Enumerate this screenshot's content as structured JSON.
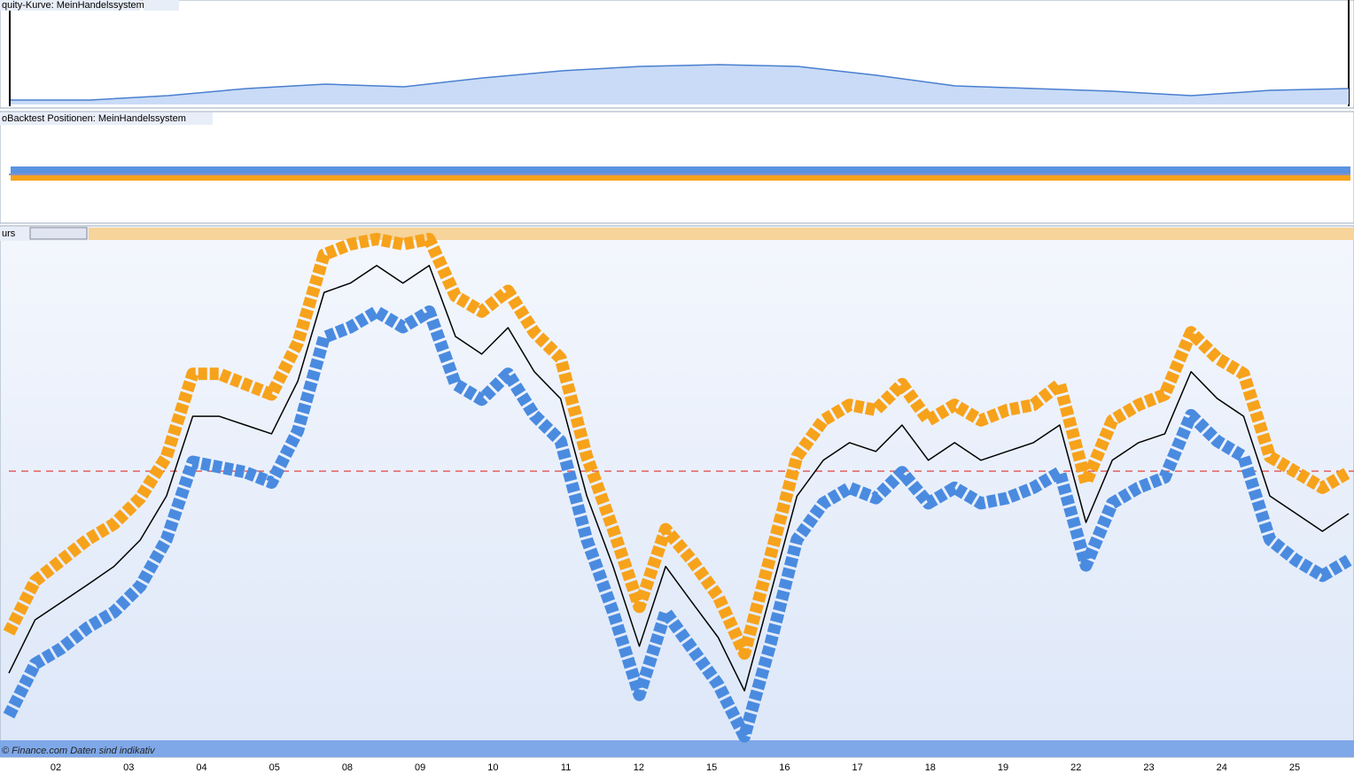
{
  "panels": {
    "equity_title": "quity-Kurve: MeinHandelssystem",
    "positions_title": "oBacktest Positionen: MeinHandelssystem",
    "price_title": "urs",
    "footer": "© Finance.com  Daten sind indikativ"
  },
  "chart_data": [
    {
      "type": "area",
      "ylim": [
        0,
        100
      ],
      "color": "#c9dbf6",
      "line_color": "#4a7fd0",
      "values": [
        5.1,
        5.1,
        10.2,
        18.4,
        23.5,
        20.4,
        30.6,
        38.8,
        43.9,
        45.9,
        43.9,
        33.7,
        21.4,
        18.4,
        15.3,
        10.2,
        16.3,
        18.4
      ]
    },
    {
      "type": "line",
      "ylim": [
        0,
        100
      ],
      "x_labels": [
        "02",
        "03",
        "04",
        "05",
        "08",
        "09",
        "10",
        "11",
        "12",
        "15",
        "16",
        "17",
        "18",
        "19",
        "22",
        "23",
        "24",
        "25"
      ],
      "reference_level": 55.2,
      "reference_color": "#e03030",
      "series": [
        {
          "color": "#f7a21b",
          "values": [
            24,
            34,
            38,
            42,
            45,
            50,
            58,
            74,
            74,
            72,
            70,
            80,
            97,
            99,
            100,
            99,
            100,
            89,
            86,
            90,
            82,
            77,
            58,
            44,
            29,
            44,
            38,
            31,
            20,
            39,
            58,
            65,
            68,
            67,
            72,
            65,
            68,
            65,
            67,
            68,
            72,
            53,
            65,
            68,
            70,
            82,
            77,
            74,
            58,
            55,
            52,
            55
          ]
        },
        {
          "color": "#4a8be0",
          "values": [
            8,
            18,
            21,
            25,
            28,
            33,
            42,
            57,
            56,
            55,
            53,
            63,
            81,
            83,
            86,
            83,
            86,
            72,
            69,
            74,
            66,
            61,
            42,
            28,
            12,
            28,
            21,
            14,
            4,
            22,
            42,
            49,
            52,
            50,
            55,
            49,
            52,
            49,
            50,
            52,
            55,
            37,
            49,
            52,
            54,
            66,
            61,
            58,
            42,
            38,
            35,
            38
          ]
        },
        {
          "color": "#000000",
          "values": [
            16.2,
            26.5,
            29.9,
            33.3,
            36.8,
            41.9,
            50.4,
            65.8,
            65.8,
            64.1,
            62.4,
            72.6,
            89.7,
            91.5,
            94.9,
            91.5,
            94.9,
            81.2,
            77.8,
            82.9,
            74.4,
            69.2,
            50.4,
            36.8,
            21.4,
            36.8,
            29.9,
            23.1,
            12.8,
            31.6,
            50.4,
            57.3,
            60.7,
            59.0,
            64.1,
            57.3,
            60.7,
            57.3,
            59.0,
            60.7,
            64.1,
            45.3,
            57.3,
            60.7,
            62.4,
            74.4,
            69.2,
            65.8,
            50.4,
            47.0,
            43.6,
            47.0
          ]
        }
      ]
    }
  ]
}
